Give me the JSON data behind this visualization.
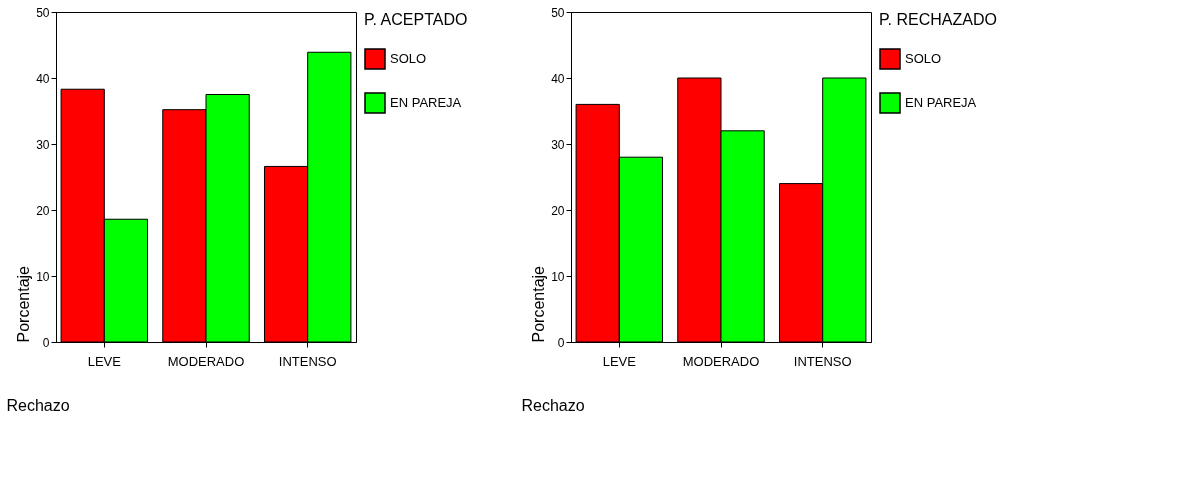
{
  "chart_data": [
    {
      "type": "bar",
      "xlabel": "Rechazo",
      "ylabel": "Porcentaje",
      "legend_title": "P. ACEPTADO",
      "categories": [
        "LEVE",
        "MODERADO",
        "INTENSO"
      ],
      "ylim": [
        0,
        50
      ],
      "yticks": [
        0,
        10,
        20,
        30,
        40,
        50
      ],
      "grid": false,
      "legend": "right",
      "series": [
        {
          "name": "SOLO",
          "color": "#ff0000",
          "values": [
            38.3,
            35.2,
            26.6
          ]
        },
        {
          "name": "EN PAREJA",
          "color": "#00ff00",
          "values": [
            18.6,
            37.5,
            43.9
          ]
        }
      ]
    },
    {
      "type": "bar",
      "xlabel": "Rechazo",
      "ylabel": "Porcentaje",
      "legend_title": "P. RECHAZADO",
      "categories": [
        "LEVE",
        "MODERADO",
        "INTENSO"
      ],
      "ylim": [
        0,
        50
      ],
      "yticks": [
        0,
        10,
        20,
        30,
        40,
        50
      ],
      "grid": false,
      "legend": "right",
      "series": [
        {
          "name": "SOLO",
          "color": "#ff0000",
          "values": [
            36,
            40,
            24
          ]
        },
        {
          "name": "EN PAREJA",
          "color": "#00ff00",
          "values": [
            28,
            32,
            40
          ]
        }
      ]
    }
  ]
}
